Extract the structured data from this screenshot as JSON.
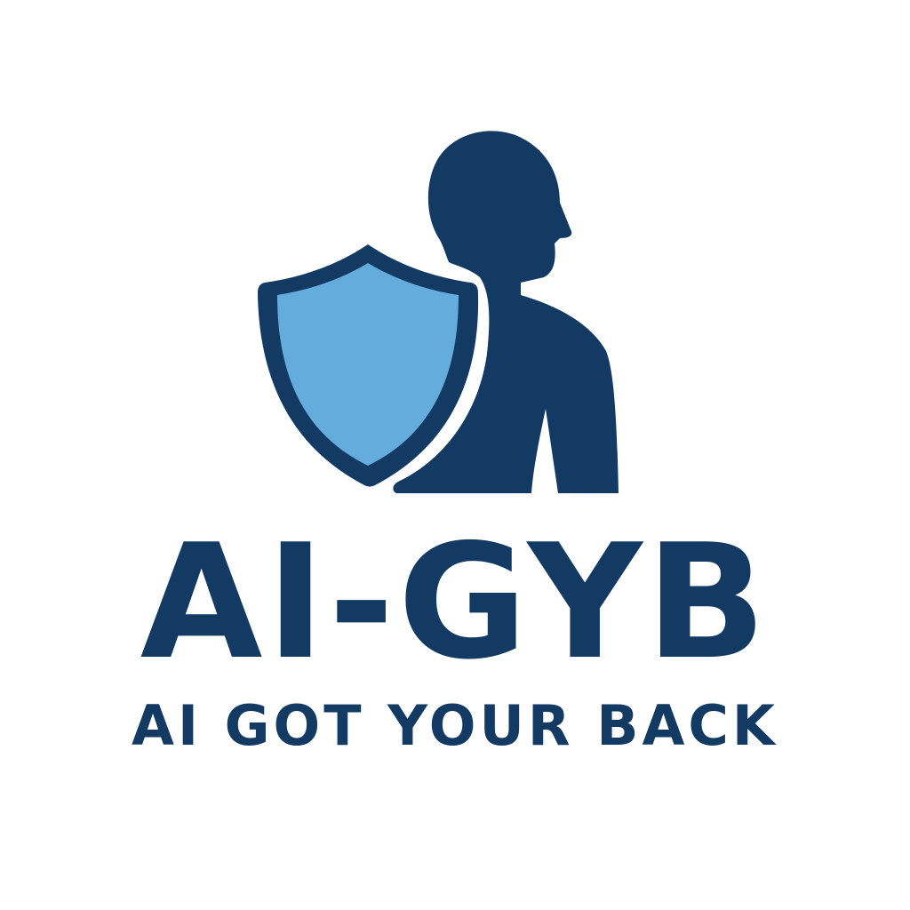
{
  "logo": {
    "wordmark": "AI-GYB",
    "tagline": "AI GOT YOUR BACK"
  },
  "icons": {
    "person": "person-silhouette-icon",
    "shield": "shield-icon"
  },
  "colors": {
    "navy": "#123a63",
    "shield_fill": "#63acdc",
    "background": "#ffffff"
  }
}
